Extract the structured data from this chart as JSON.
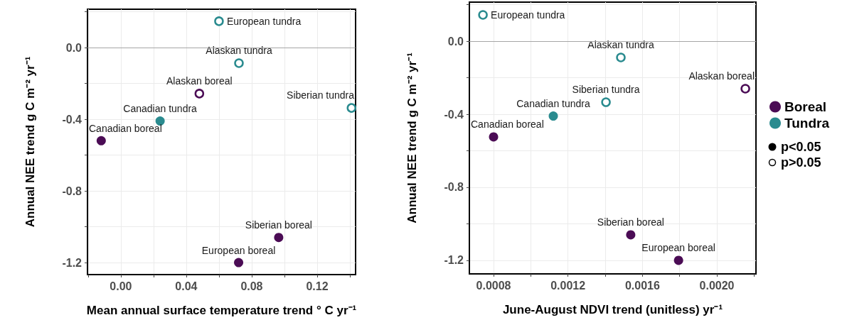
{
  "chart_data": [
    {
      "type": "scatter",
      "xlabel": "Mean annual surface temperature trend ° C yr⁻¹",
      "ylabel": "Annual NEE trend g C m⁻² yr⁻¹",
      "xlim": [
        -0.0204,
        0.1435
      ],
      "ylim": [
        -1.267,
        0.214
      ],
      "xticks": [
        {
          "value": -0.02,
          "label": null
        },
        {
          "value": 0,
          "label": "0.00"
        },
        {
          "value": 0.02,
          "label": null
        },
        {
          "value": 0.04,
          "label": "0.04"
        },
        {
          "value": 0.06,
          "label": null
        },
        {
          "value": 0.08,
          "label": "0.08"
        },
        {
          "value": 0.1,
          "label": null
        },
        {
          "value": 0.12,
          "label": "0.12"
        },
        {
          "value": 0.14,
          "label": null
        }
      ],
      "yticks": [
        {
          "value": -1.2,
          "label": "-1.2"
        },
        {
          "value": -1,
          "label": null
        },
        {
          "value": -0.8,
          "label": "-0.8"
        },
        {
          "value": -0.6,
          "label": null
        },
        {
          "value": -0.4,
          "label": "-0.4"
        },
        {
          "value": -0.2,
          "label": null
        },
        {
          "value": 0,
          "label": "0.0"
        },
        {
          "value": 0.2,
          "label": null
        }
      ],
      "grid": true,
      "marker": "circle",
      "legend": false,
      "ref_lines": [
        {
          "axis": "y",
          "value": 0,
          "color": "#a6a6a6"
        }
      ],
      "series": [
        {
          "color": "#4b0c55",
          "x": [
            -0.012,
            0.0965,
            0.072
          ],
          "values": [
            -0.52,
            -1.06,
            -1.2
          ],
          "value_labels": [
            "Canadian boreal",
            "Siberian boreal",
            "European boreal"
          ]
        },
        {
          "color": "#2a8b8f",
          "x": [
            0.024
          ],
          "values": [
            -0.41
          ],
          "value_labels": [
            "Canadian tundra"
          ]
        },
        {
          "color": "#4b0c55",
          "x": [
            0.048
          ],
          "values": [
            -0.257
          ],
          "value_labels": [
            "Alaskan boreal"
          ]
        },
        {
          "color": "#2a8b8f",
          "x": [
            0.06,
            0.0722,
            0.141
          ],
          "values": [
            0.147,
            -0.087,
            -0.337
          ],
          "value_labels": [
            "European tundra",
            "Alaskan tundra",
            "Siberian tundra"
          ]
        }
      ]
    },
    {
      "type": "scatter",
      "xlabel": "June-August NDVI trend (unitless) yr⁻¹",
      "ylabel": "Annual NEE trend g C m⁻² yr⁻¹",
      "xlim": [
        0.00067,
        0.00221
      ],
      "ylim": [
        -1.274,
        0.214
      ],
      "xticks": [
        {
          "value": 0.0008,
          "label": "0.0008"
        },
        {
          "value": 0.001,
          "label": null
        },
        {
          "value": 0.0012,
          "label": "0.0012"
        },
        {
          "value": 0.0014,
          "label": null
        },
        {
          "value": 0.0016,
          "label": "0.0016"
        },
        {
          "value": 0.0018,
          "label": null
        },
        {
          "value": 0.002,
          "label": "0.0020"
        },
        {
          "value": 0.0022,
          "label": null
        }
      ],
      "yticks": [
        {
          "value": -1.2,
          "label": "-1.2"
        },
        {
          "value": -1,
          "label": null
        },
        {
          "value": -0.8,
          "label": "-0.8"
        },
        {
          "value": -0.6,
          "label": null
        },
        {
          "value": -0.4,
          "label": "-0.4"
        },
        {
          "value": -0.2,
          "label": null
        },
        {
          "value": 0,
          "label": "0.0"
        },
        {
          "value": 0.2,
          "label": null
        }
      ],
      "grid": true,
      "marker": "circle",
      "legend": "right",
      "ref_lines": [
        {
          "axis": "y",
          "value": 0,
          "color": "#a6a6a6"
        }
      ],
      "annotations": [
        "p<0.05",
        "p>0.05"
      ],
      "series": [
        {
          "name": "Boreal",
          "color": "#4b0c55",
          "x": [
            0.0008,
            0.001537,
            0.001794
          ],
          "values": [
            -0.524,
            -1.06,
            -1.2
          ],
          "value_labels": [
            "Canadian boreal",
            "Siberian boreal",
            "European boreal"
          ]
        },
        {
          "name": "Tundra",
          "color": "#2a8b8f",
          "x": [
            0.001121
          ],
          "values": [
            -0.41
          ],
          "value_labels": [
            "Canadian tundra"
          ]
        },
        {
          "color": "#4b0c55",
          "x": [
            0.002153
          ],
          "values": [
            -0.26
          ],
          "value_labels": [
            "Alaskan boreal"
          ]
        },
        {
          "color": "#2a8b8f",
          "x": [
            0.000743,
            0.001484,
            0.001404
          ],
          "values": [
            0.144,
            -0.089,
            -0.334
          ],
          "value_labels": [
            "European tundra",
            "Alaskan tundra",
            "Siberian tundra"
          ]
        }
      ]
    }
  ]
}
